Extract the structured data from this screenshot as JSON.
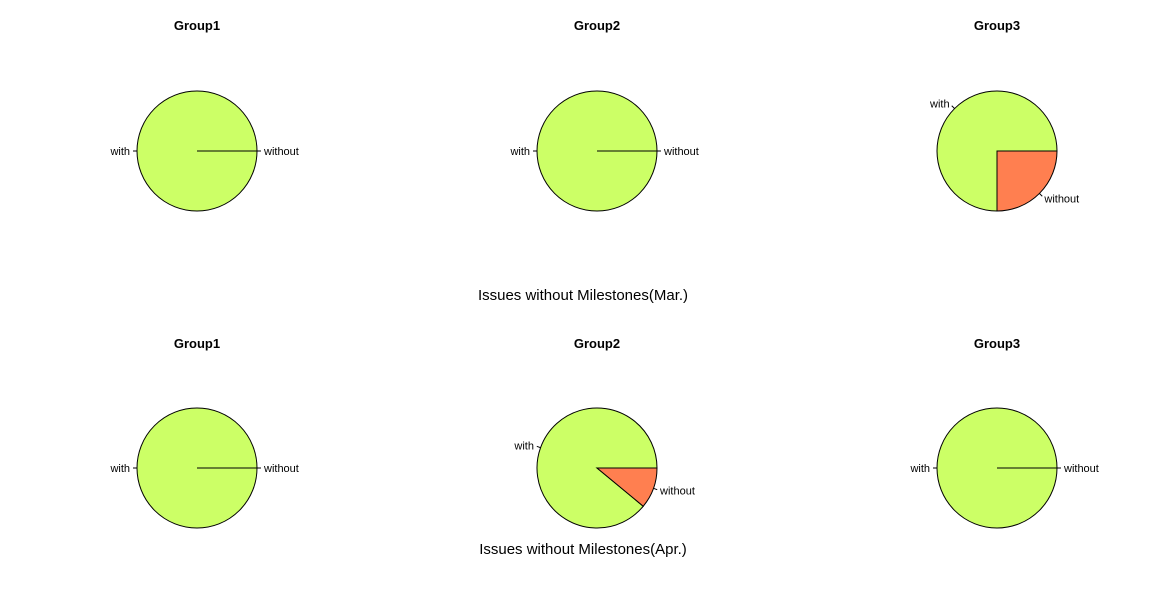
{
  "palette": {
    "with": "#CCFF66",
    "without": "#FF7F50",
    "outline": "#000000"
  },
  "chart_data": [
    {
      "type": "pie",
      "title": "Group1",
      "period": "Mar.",
      "labels": [
        "with",
        "without"
      ],
      "values": [
        100,
        0
      ]
    },
    {
      "type": "pie",
      "title": "Group2",
      "period": "Mar.",
      "labels": [
        "with",
        "without"
      ],
      "values": [
        100,
        0
      ]
    },
    {
      "type": "pie",
      "title": "Group3",
      "period": "Mar.",
      "labels": [
        "with",
        "without"
      ],
      "values": [
        75,
        25
      ]
    },
    {
      "type": "pie",
      "title": "Group1",
      "period": "Apr.",
      "labels": [
        "with",
        "without"
      ],
      "values": [
        100,
        0
      ]
    },
    {
      "type": "pie",
      "title": "Group2",
      "period": "Apr.",
      "labels": [
        "with",
        "without"
      ],
      "values": [
        89,
        11
      ]
    },
    {
      "type": "pie",
      "title": "Group3",
      "period": "Apr.",
      "labels": [
        "with",
        "without"
      ],
      "values": [
        100,
        0
      ]
    }
  ],
  "captions": {
    "march": "Issues without Milestones(Mar.)",
    "april": "Issues without Milestones(Apr.)"
  }
}
